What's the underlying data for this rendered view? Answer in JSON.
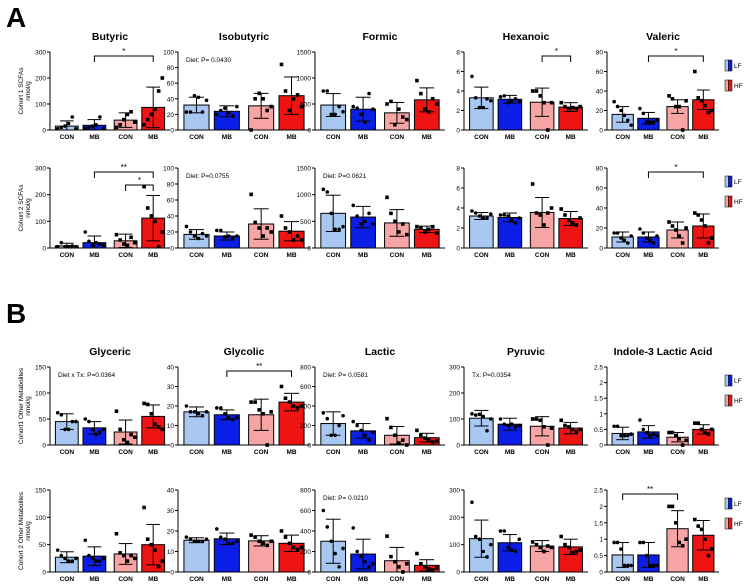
{
  "panel_labels": [
    "A",
    "B"
  ],
  "groups": [
    "CON",
    "MB",
    "CON",
    "MB"
  ],
  "colors": {
    "LF_CON": "#a8c8f2",
    "LF_MB": "#0b1ee6",
    "HF_CON": "#f6a4a4",
    "HF_MB": "#ee1414",
    "axis": "#000000"
  },
  "legend": [
    {
      "label": "LF",
      "colors": [
        "#a8c8f2",
        "#0b1ee6"
      ]
    },
    {
      "label": "HF",
      "colors": [
        "#f6a4a4",
        "#ee1414"
      ]
    }
  ],
  "row_ylabels": [
    [
      "Cohort 1 SCFAs",
      "nmol/g"
    ],
    [
      "Cohort 2 SCFAs",
      "nmol/g"
    ],
    [
      "Cohort1 Other Metabolites",
      "nmol/g"
    ],
    [
      "Cohort 2 Other Metabolites",
      "nmol/g"
    ]
  ],
  "chart_data": [
    {
      "type": "bar",
      "title": "Butyric",
      "ylim": [
        0,
        300
      ],
      "yticks": [
        0,
        100,
        200,
        300
      ],
      "means": [
        15,
        18,
        38,
        87
      ],
      "sd": [
        20,
        22,
        28,
        78
      ],
      "points": [
        [
          5,
          10,
          15,
          25,
          50,
          5
        ],
        [
          5,
          10,
          15,
          20,
          50,
          5
        ],
        [
          10,
          20,
          40,
          60,
          70,
          30
        ],
        [
          20,
          40,
          60,
          80,
          150,
          200
        ]
      ],
      "note": "",
      "brackets": [
        {
          "from": 1,
          "to": 3,
          "label": "*"
        }
      ]
    },
    {
      "type": "bar",
      "title": "Isobutyric",
      "ylim": [
        0,
        100
      ],
      "yticks": [
        0,
        20,
        40,
        60,
        80,
        100
      ],
      "means": [
        32,
        24,
        31,
        44
      ],
      "sd": [
        10,
        7,
        16,
        24
      ],
      "points": [
        [
          23,
          23,
          44,
          42,
          23,
          38
        ],
        [
          20,
          25,
          28,
          22,
          18,
          30
        ],
        [
          0,
          40,
          47,
          40,
          25,
          30
        ],
        [
          84,
          50,
          25,
          40,
          45,
          30
        ]
      ],
      "note": "Diet: P= 0.0430",
      "brackets": []
    },
    {
      "type": "bar",
      "title": "Formic",
      "ylim": [
        0,
        1500
      ],
      "yticks": [
        0,
        500,
        1000,
        1500
      ],
      "means": [
        480,
        400,
        330,
        580
      ],
      "sd": [
        220,
        230,
        200,
        230
      ],
      "points": [
        [
          750,
          750,
          300,
          300,
          450,
          350
        ],
        [
          450,
          420,
          300,
          150,
          700,
          400
        ],
        [
          500,
          550,
          100,
          400,
          250,
          200
        ],
        [
          950,
          700,
          400,
          350,
          600,
          500
        ]
      ],
      "note": "",
      "brackets": []
    },
    {
      "type": "bar",
      "title": "Hexanoic",
      "ylim": [
        0,
        8
      ],
      "yticks": [
        0,
        2,
        4,
        6,
        8
      ],
      "means": [
        3.3,
        3.15,
        2.85,
        2.35
      ],
      "sd": [
        1.1,
        0.4,
        1.45,
        0.45
      ],
      "points": [
        [
          5.5,
          3.3,
          2.3,
          2.3,
          3.2,
          3.0
        ],
        [
          3.4,
          3.5,
          2.8,
          3.0,
          3.2,
          2.9
        ],
        [
          4.0,
          4.0,
          3.5,
          2.8,
          0,
          2.8
        ],
        [
          2.8,
          2.4,
          2.2,
          2.3,
          2.2,
          2.4
        ]
      ],
      "note": "",
      "brackets": [
        {
          "from": 2,
          "to": 3,
          "label": "*"
        }
      ]
    },
    {
      "type": "bar",
      "title": "Valeric",
      "ylim": [
        0,
        80
      ],
      "yticks": [
        0,
        20,
        40,
        60,
        80
      ],
      "means": [
        16,
        12,
        24,
        31
      ],
      "sd": [
        8,
        6,
        7,
        10
      ],
      "points": [
        [
          29,
          24,
          20,
          15,
          10,
          5
        ],
        [
          22,
          17,
          8,
          8,
          8,
          10
        ],
        [
          35,
          32,
          24,
          24,
          0,
          30
        ],
        [
          60,
          33,
          30,
          25,
          18,
          20
        ]
      ],
      "note": "",
      "brackets": [
        {
          "from": 1,
          "to": 3,
          "label": "*"
        }
      ]
    },
    {
      "type": "bar",
      "title": "",
      "ylim": [
        0,
        300
      ],
      "yticks": [
        0,
        100,
        200,
        300
      ],
      "means": [
        8,
        20,
        27,
        112
      ],
      "sd": [
        10,
        25,
        25,
        85
      ],
      "points": [
        [
          5,
          20,
          5,
          5,
          8,
          5
        ],
        [
          60,
          25,
          10,
          20,
          15,
          10
        ],
        [
          50,
          30,
          15,
          10,
          40,
          20
        ],
        [
          230,
          150,
          120,
          100,
          5,
          60
        ]
      ],
      "note": "",
      "brackets": [
        {
          "from": 1,
          "to": 3,
          "label": "**"
        },
        {
          "from": 2,
          "to": 3,
          "label": "*"
        }
      ]
    },
    {
      "type": "bar",
      "title": "",
      "ylim": [
        0,
        100
      ],
      "yticks": [
        0,
        20,
        40,
        60,
        80,
        100
      ],
      "means": [
        17,
        15,
        30,
        21
      ],
      "sd": [
        6,
        5,
        19,
        12
      ],
      "points": [
        [
          27,
          20,
          15,
          12,
          18,
          15
        ],
        [
          22,
          22,
          14,
          15,
          12,
          15
        ],
        [
          67,
          32,
          25,
          15,
          25,
          20
        ],
        [
          40,
          25,
          20,
          10,
          15,
          10
        ]
      ],
      "note": "Diet: P=0.0755",
      "brackets": []
    },
    {
      "type": "bar",
      "title": "",
      "ylim": [
        0,
        1500
      ],
      "yticks": [
        0,
        500,
        1000,
        1500
      ],
      "means": [
        650,
        580,
        470,
        350
      ],
      "sd": [
        340,
        200,
        250,
        60
      ],
      "points": [
        [
          1100,
          1050,
          650,
          350,
          350,
          400
        ],
        [
          800,
          600,
          450,
          500,
          650,
          450
        ],
        [
          950,
          650,
          500,
          300,
          450,
          250
        ],
        [
          400,
          380,
          300,
          350,
          400,
          280
        ]
      ],
      "note": "Diet: P=0.0621",
      "brackets": []
    },
    {
      "type": "bar",
      "title": "",
      "ylim": [
        0,
        8
      ],
      "yticks": [
        0,
        2,
        4,
        6,
        8
      ],
      "means": [
        3.2,
        3.05,
        3.55,
        2.95
      ],
      "sd": [
        0.35,
        0.45,
        1.5,
        0.7
      ],
      "points": [
        [
          3.7,
          3.5,
          3.2,
          3.0,
          3.0,
          3.4
        ],
        [
          3.3,
          3.3,
          3.2,
          2.8,
          2.5,
          3.0
        ],
        [
          6.4,
          3.5,
          3.3,
          2.3,
          3.5,
          4.0
        ],
        [
          3.9,
          3.3,
          2.8,
          2.5,
          2.3,
          3.0
        ]
      ],
      "note": "",
      "brackets": []
    },
    {
      "type": "bar",
      "title": "",
      "ylim": [
        0,
        80
      ],
      "yticks": [
        0,
        20,
        40,
        60,
        80
      ],
      "means": [
        11,
        11,
        18,
        22
      ],
      "sd": [
        5,
        5,
        8,
        12
      ],
      "points": [
        [
          15,
          15,
          10,
          8,
          5,
          12
        ],
        [
          19,
          15,
          10,
          8,
          5,
          12
        ],
        [
          26,
          22,
          18,
          12,
          5,
          20
        ],
        [
          35,
          33,
          28,
          22,
          5,
          10
        ]
      ],
      "note": "",
      "brackets": [
        {
          "from": 1,
          "to": 3,
          "label": "*"
        }
      ]
    },
    {
      "type": "bar",
      "title": "Glyceric",
      "ylim": [
        0,
        150
      ],
      "yticks": [
        0,
        50,
        100,
        150
      ],
      "means": [
        45,
        33,
        25,
        55
      ],
      "sd": [
        15,
        12,
        23,
        22
      ],
      "points": [
        [
          62,
          58,
          30,
          30,
          45,
          45
        ],
        [
          50,
          45,
          30,
          20,
          25,
          30
        ],
        [
          65,
          30,
          10,
          5,
          20,
          15
        ],
        [
          80,
          78,
          60,
          40,
          35,
          30
        ]
      ],
      "note": "Diet x Tx:  P=0.0364",
      "brackets": []
    },
    {
      "type": "bar",
      "title": "Glycolic",
      "ylim": [
        0,
        40
      ],
      "yticks": [
        0,
        10,
        20,
        30,
        40
      ],
      "means": [
        17,
        15.5,
        15.5,
        22
      ],
      "sd": [
        2.5,
        2.5,
        8,
        4.5
      ],
      "points": [
        [
          20,
          17,
          17,
          16,
          15,
          17
        ],
        [
          19,
          19,
          16,
          14,
          13,
          14
        ],
        [
          22,
          22,
          18,
          16,
          0,
          17
        ],
        [
          30,
          24,
          22,
          20,
          19,
          20
        ]
      ],
      "note": "",
      "brackets": [
        {
          "from": 1,
          "to": 3,
          "label": "**"
        }
      ]
    },
    {
      "type": "bar",
      "title": "Lactic",
      "ylim": [
        0,
        800
      ],
      "yticks": [
        0,
        200,
        400,
        600,
        800
      ],
      "means": [
        220,
        145,
        100,
        75
      ],
      "sd": [
        120,
        75,
        90,
        45
      ],
      "points": [
        [
          330,
          270,
          100,
          100,
          200,
          300
        ],
        [
          240,
          200,
          150,
          100,
          50,
          130
        ],
        [
          270,
          180,
          100,
          20,
          50,
          0
        ],
        [
          150,
          100,
          70,
          50,
          30,
          40
        ]
      ],
      "note": "Diet:  P= 0.0581",
      "brackets": []
    },
    {
      "type": "bar",
      "title": "Pyruvic",
      "ylim": [
        0,
        300
      ],
      "yticks": [
        0,
        100,
        200,
        300
      ],
      "means": [
        103,
        80,
        72,
        65
      ],
      "sd": [
        30,
        23,
        37,
        22
      ],
      "points": [
        [
          120,
          115,
          118,
          110,
          55,
          100
        ],
        [
          100,
          80,
          75,
          80,
          70,
          75
        ],
        [
          100,
          100,
          95,
          70,
          0,
          65
        ],
        [
          95,
          75,
          70,
          60,
          50,
          60
        ]
      ],
      "note": "Tx: P=0.0354",
      "brackets": []
    },
    {
      "type": "bar",
      "title": "Indole-3 Lactic Acid",
      "ylim": [
        0,
        2.5
      ],
      "yticks": [
        0,
        0.5,
        1.0,
        1.5,
        2.0,
        2.5
      ],
      "means": [
        0.37,
        0.42,
        0.25,
        0.5
      ],
      "sd": [
        0.2,
        0.2,
        0.15,
        0.15
      ],
      "points": [
        [
          0.6,
          0.6,
          0.3,
          0.3,
          0.3,
          0.35
        ],
        [
          0.8,
          0.5,
          0.4,
          0.3,
          0.35,
          0.3
        ],
        [
          0.4,
          0.4,
          0.3,
          0.2,
          0,
          0.15
        ],
        [
          0.7,
          0.7,
          0.5,
          0.4,
          0.35,
          0.5
        ]
      ],
      "note": "",
      "brackets": []
    },
    {
      "type": "bar",
      "title": "",
      "ylim": [
        0,
        150
      ],
      "yticks": [
        0,
        50,
        100,
        150
      ],
      "means": [
        27,
        29,
        33,
        50
      ],
      "sd": [
        10,
        17,
        19,
        37
      ],
      "points": [
        [
          40,
          30,
          25,
          20,
          20,
          25
        ],
        [
          58,
          30,
          25,
          20,
          20,
          25
        ],
        [
          70,
          35,
          30,
          20,
          30,
          25
        ],
        [
          118,
          60,
          50,
          40,
          10,
          20
        ]
      ],
      "note": "",
      "brackets": []
    },
    {
      "type": "bar",
      "title": "",
      "ylim": [
        0,
        40
      ],
      "yticks": [
        0,
        10,
        20,
        30,
        40
      ],
      "means": [
        15.5,
        16.2,
        15.2,
        14
      ],
      "sd": [
        1.2,
        2.8,
        2.5,
        4
      ],
      "points": [
        [
          17,
          16,
          15,
          15,
          15,
          16
        ],
        [
          21,
          17,
          16,
          14,
          14,
          15
        ],
        [
          18,
          17,
          15,
          14,
          13,
          15
        ],
        [
          20,
          17,
          14,
          12,
          11,
          12
        ]
      ],
      "note": "",
      "brackets": []
    },
    {
      "type": "bar",
      "title": "",
      "ylim": [
        0,
        800
      ],
      "yticks": [
        0,
        200,
        400,
        600,
        800
      ],
      "means": [
        300,
        175,
        110,
        65
      ],
      "sd": [
        215,
        145,
        130,
        55
      ],
      "points": [
        [
          600,
          440,
          300,
          180,
          50,
          230
        ],
        [
          430,
          200,
          150,
          100,
          50,
          80
        ],
        [
          350,
          150,
          100,
          50,
          0,
          80
        ],
        [
          180,
          80,
          50,
          30,
          20,
          40
        ]
      ],
      "note": "Diet: P= 0.0210",
      "brackets": []
    },
    {
      "type": "bar",
      "title": "",
      "ylim": [
        0,
        300
      ],
      "yticks": [
        0,
        100,
        200,
        300
      ],
      "means": [
        122,
        107,
        95,
        92
      ],
      "sd": [
        68,
        30,
        20,
        28
      ],
      "points": [
        [
          255,
          130,
          120,
          75,
          55,
          100
        ],
        [
          150,
          150,
          90,
          80,
          75,
          120
        ],
        [
          110,
          100,
          90,
          75,
          95,
          90
        ],
        [
          130,
          100,
          90,
          70,
          75,
          80
        ]
      ],
      "note": "",
      "brackets": []
    },
    {
      "type": "bar",
      "title": "",
      "ylim": [
        0,
        2.5
      ],
      "yticks": [
        0,
        0.5,
        1.0,
        1.5,
        2.0,
        2.5
      ],
      "means": [
        0.52,
        0.52,
        1.32,
        1.12
      ],
      "sd": [
        0.38,
        0.38,
        0.55,
        0.45
      ],
      "points": [
        [
          0.9,
          0.9,
          0.7,
          0.2,
          0.2,
          0.2
        ],
        [
          0.9,
          0.9,
          0.5,
          0.2,
          0.2,
          0.2
        ],
        [
          2.0,
          2.0,
          1.5,
          0.9,
          0.8,
          1.0
        ],
        [
          1.6,
          1.4,
          1.3,
          1.0,
          0.5,
          0.7
        ]
      ],
      "note": "",
      "brackets": [
        {
          "from": 0,
          "to": 2,
          "label": "**"
        }
      ]
    }
  ]
}
